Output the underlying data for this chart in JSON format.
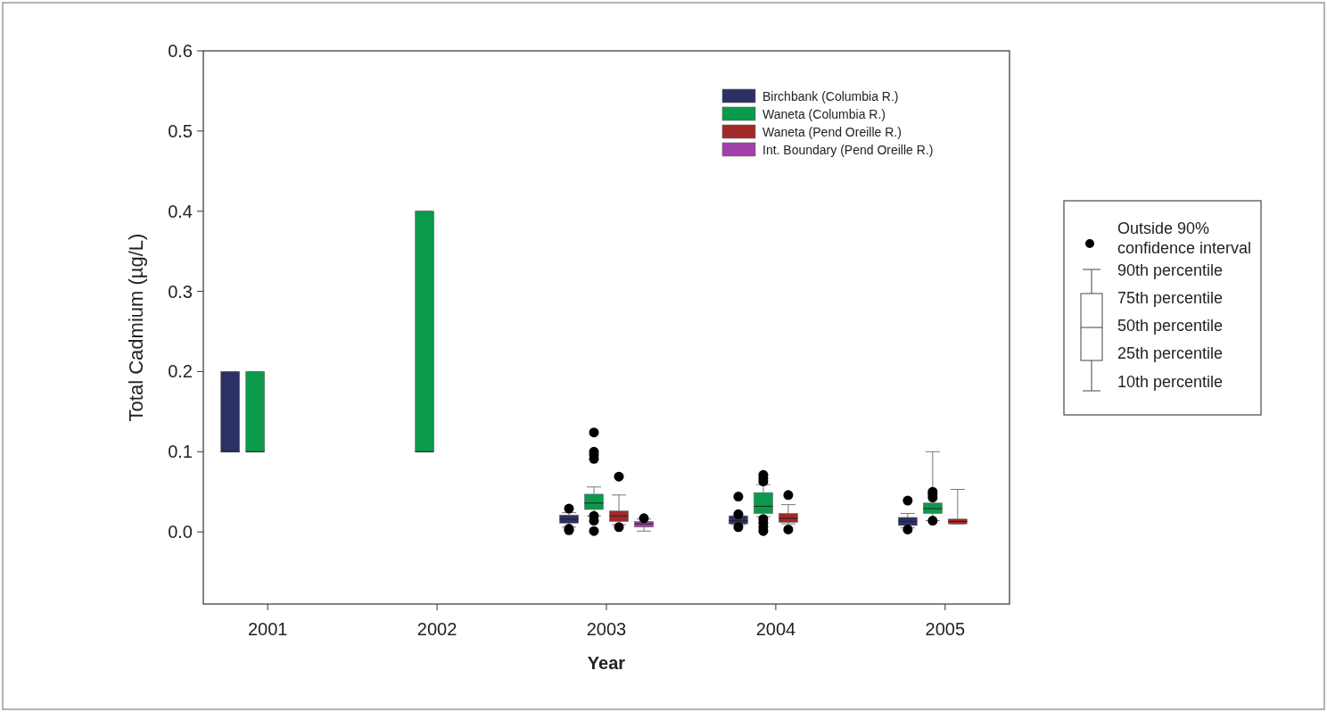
{
  "chart_data": {
    "type": "box",
    "xlabel": "Year",
    "ylabel": "Total Cadmium (µg/L)",
    "categories": [
      "2001",
      "2002",
      "2003",
      "2004",
      "2005"
    ],
    "ylim": [
      -0.09,
      0.6
    ],
    "yticks": [
      {
        "value": 0,
        "label": "0.0"
      },
      0.1,
      0.2,
      0.3,
      0.4,
      0.5,
      0.6
    ],
    "legend": "top right",
    "marker": "circle",
    "series": [
      {
        "name": "Birchbank (Columbia R.)",
        "color": "#2b3163",
        "boxes": [
          {
            "low": 0.1,
            "q1": 0.1,
            "median": 0.1,
            "q3": 0.2,
            "high": 0.2
          },
          null,
          {
            "low": 0.006,
            "q1": 0.011,
            "median": 0.016,
            "q3": 0.021,
            "high": 0.024,
            "outliers": [
              0.029,
              0.004,
              0.002
            ]
          },
          {
            "low": 0.009,
            "q1": 0.01,
            "median": 0.014,
            "q3": 0.02,
            "high": 0.02,
            "outliers": [
              0.044,
              0.022,
              0.006
            ]
          },
          {
            "low": 0.005,
            "q1": 0.008,
            "median": 0.013,
            "q3": 0.018,
            "high": 0.023,
            "outliers": [
              0.039,
              0.003
            ]
          }
        ]
      },
      {
        "name": "Waneta (Columbia R.)",
        "color": "#0a9a4a",
        "boxes": [
          {
            "low": 0.1,
            "q1": 0.1,
            "median": 0.1,
            "q3": 0.2,
            "high": 0.2
          },
          {
            "low": 0.1,
            "q1": 0.1,
            "median": 0.1,
            "q3": 0.4,
            "high": 0.4
          },
          {
            "low": 0.02,
            "q1": 0.028,
            "median": 0.036,
            "q3": 0.047,
            "high": 0.056,
            "outliers": [
              0.124,
              0.1,
              0.096,
              0.091,
              0.02,
              0.014,
              0.001
            ]
          },
          {
            "low": 0.019,
            "q1": 0.023,
            "median": 0.032,
            "q3": 0.049,
            "high": 0.059,
            "outliers": [
              0.071,
              0.067,
              0.063,
              0.016,
              0.011,
              0.006,
              0.001
            ]
          },
          {
            "low": 0.014,
            "q1": 0.023,
            "median": 0.029,
            "q3": 0.036,
            "high": 0.1,
            "outliers": [
              0.05,
              0.047,
              0.043,
              0.014
            ]
          }
        ]
      },
      {
        "name": "Waneta (Pend Oreille R.)",
        "color": "#a3282a",
        "boxes": [
          null,
          null,
          {
            "low": 0.009,
            "q1": 0.013,
            "median": 0.02,
            "q3": 0.026,
            "high": 0.046,
            "outliers": [
              0.069,
              0.006
            ]
          },
          {
            "low": 0.01,
            "q1": 0.012,
            "median": 0.017,
            "q3": 0.023,
            "high": 0.034,
            "outliers": [
              0.046,
              0.003
            ]
          },
          {
            "low": 0.01,
            "q1": 0.01,
            "median": 0.013,
            "q3": 0.016,
            "high": 0.053
          }
        ]
      },
      {
        "name": "Int. Boundary (Pend Oreille R.)",
        "color": "#a040a8",
        "boxes": [
          null,
          null,
          {
            "low": 0.001,
            "q1": 0.006,
            "median": 0.01,
            "q3": 0.013,
            "high": 0.016,
            "outliers": [
              0.017
            ]
          },
          null,
          null
        ]
      }
    ],
    "annotations": [
      "Outside 90% confidence interval",
      "90th percentile",
      "75th percentile",
      "50th percentile",
      "25th percentile",
      "10th percentile"
    ]
  }
}
